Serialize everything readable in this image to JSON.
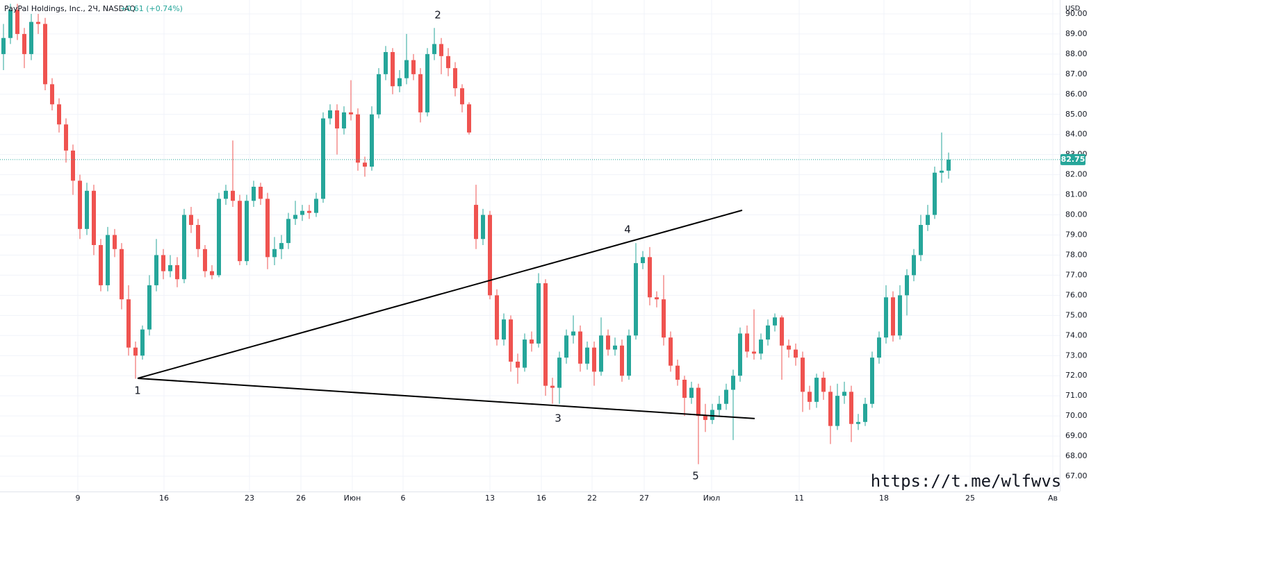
{
  "chart_data": {
    "type": "candlestick",
    "title": "PayPal Holdings, Inc., 2Ч, NASDAQ",
    "change": "+0.61 (+0.74%)",
    "currency": "USD",
    "watermark": "https://t.me/wlfwvs",
    "up_color": "#26a69a",
    "down_color": "#ef5350",
    "grid": true,
    "open": [
      88.0,
      88.8,
      90.2,
      89.0,
      88.0,
      89.6,
      89.5,
      86.5,
      85.5,
      84.5,
      83.2,
      81.7,
      79.3,
      81.2,
      78.5,
      76.5,
      79.0,
      78.3,
      75.8,
      73.4,
      73.0,
      74.3,
      76.5,
      78.0,
      77.2,
      77.5,
      76.8,
      80.0,
      79.5,
      78.3,
      77.2,
      77.0,
      80.8,
      81.2,
      80.7,
      77.7,
      80.7,
      81.4,
      80.8,
      77.9,
      78.3,
      78.6,
      79.8,
      80.0,
      80.2,
      80.1,
      80.8,
      84.8,
      85.2,
      84.3,
      85.1,
      85.0,
      82.6,
      82.4,
      85.0,
      87.0,
      88.1,
      86.4,
      86.8,
      87.7,
      87.0,
      85.1,
      88.0,
      88.5,
      87.9,
      87.3,
      86.3,
      85.5,
      80.5,
      78.8,
      80.0,
      76.0,
      73.8,
      74.8,
      72.7,
      72.4,
      73.8,
      73.6,
      76.6,
      71.5,
      71.4,
      72.9,
      74.0,
      74.2,
      72.6,
      73.4,
      72.2,
      74.0,
      73.3,
      73.5,
      72.0,
      74.0,
      77.6,
      77.9,
      75.9,
      75.8,
      73.9,
      72.5,
      71.8,
      70.9,
      71.4,
      70.0,
      69.8,
      70.3,
      70.6,
      71.3,
      72.0,
      74.1,
      73.2,
      73.1,
      73.8,
      74.5,
      74.9,
      73.5,
      73.3,
      72.9,
      71.2,
      70.7,
      71.9,
      71.2,
      69.5,
      71.0,
      71.2,
      69.6,
      69.7,
      70.6,
      72.9,
      73.9,
      75.9,
      74.0,
      76.0,
      77.0,
      78.0,
      79.5,
      80.0,
      82.1,
      82.2
    ],
    "high": [
      89.5,
      90.5,
      90.5,
      89.3,
      90.0,
      90.0,
      89.8,
      86.8,
      85.8,
      84.8,
      83.5,
      82.0,
      81.6,
      81.5,
      78.8,
      79.4,
      79.3,
      78.6,
      76.5,
      73.7,
      74.5,
      77.0,
      78.8,
      78.3,
      78.0,
      77.9,
      80.3,
      80.4,
      79.8,
      78.5,
      77.5,
      81.1,
      81.5,
      83.7,
      81.0,
      81.0,
      81.7,
      81.6,
      81.1,
      78.9,
      79.0,
      80.1,
      80.7,
      80.5,
      80.5,
      81.1,
      85.1,
      85.5,
      85.5,
      85.4,
      86.7,
      85.3,
      82.9,
      85.4,
      87.3,
      88.4,
      88.3,
      87.2,
      89.0,
      88.0,
      87.3,
      88.3,
      89.3,
      88.8,
      88.3,
      87.6,
      86.5,
      85.6,
      81.5,
      80.3,
      80.2,
      76.3,
      75.1,
      75.0,
      73.1,
      74.1,
      74.2,
      77.1,
      76.8,
      71.9,
      73.2,
      74.3,
      75.0,
      74.5,
      73.7,
      73.7,
      74.9,
      74.3,
      73.9,
      73.8,
      74.3,
      78.6,
      78.2,
      78.4,
      76.2,
      77.0,
      74.2,
      72.8,
      72.0,
      71.7,
      71.6,
      70.6,
      70.6,
      71.0,
      71.6,
      72.3,
      74.4,
      74.5,
      75.3,
      74.1,
      74.8,
      75.1,
      75.0,
      73.8,
      73.6,
      73.2,
      71.5,
      72.1,
      72.2,
      71.5,
      71.6,
      71.7,
      71.5,
      70.1,
      70.9,
      73.2,
      74.2,
      76.5,
      76.2,
      76.5,
      77.3,
      78.3,
      80.0,
      80.5,
      82.4,
      84.1,
      83.1
    ],
    "low": [
      87.2,
      88.5,
      88.7,
      87.3,
      87.7,
      89.0,
      86.2,
      85.2,
      84.1,
      82.6,
      81.0,
      78.8,
      79.0,
      78.0,
      76.2,
      76.2,
      77.9,
      75.3,
      73.0,
      71.85,
      72.8,
      74.0,
      76.2,
      76.8,
      76.9,
      76.4,
      76.6,
      79.1,
      77.9,
      76.9,
      76.8,
      76.9,
      80.5,
      80.4,
      77.5,
      77.5,
      80.4,
      80.5,
      77.3,
      77.5,
      77.8,
      78.3,
      79.5,
      79.7,
      79.8,
      79.9,
      80.6,
      84.5,
      83.0,
      84.0,
      84.7,
      82.2,
      81.9,
      82.2,
      84.8,
      86.7,
      86.0,
      86.1,
      86.5,
      86.7,
      84.6,
      84.9,
      87.7,
      87.0,
      86.9,
      85.9,
      85.1,
      84.0,
      78.3,
      78.5,
      75.8,
      73.5,
      73.5,
      72.2,
      71.6,
      72.2,
      73.2,
      73.4,
      71.0,
      70.6,
      70.6,
      72.6,
      73.6,
      72.2,
      72.3,
      71.5,
      72.0,
      73.0,
      73.0,
      71.7,
      71.8,
      73.8,
      77.3,
      75.5,
      75.4,
      73.5,
      72.2,
      71.5,
      70.0,
      70.6,
      67.6,
      69.2,
      69.6,
      70.0,
      70.3,
      68.8,
      71.7,
      72.9,
      72.8,
      72.8,
      73.5,
      74.2,
      71.8,
      72.9,
      72.5,
      70.2,
      70.3,
      70.4,
      70.8,
      68.6,
      69.3,
      70.6,
      68.7,
      69.3,
      69.5,
      70.4,
      72.6,
      73.6,
      73.7,
      73.8,
      75.0,
      76.7,
      77.7,
      79.2,
      79.8,
      81.6,
      81.8
    ],
    "close": [
      88.8,
      90.2,
      89.0,
      88.0,
      89.6,
      89.5,
      86.5,
      85.5,
      84.5,
      83.2,
      81.7,
      79.3,
      81.2,
      78.5,
      76.5,
      79.0,
      78.3,
      75.8,
      73.4,
      73.0,
      74.3,
      76.5,
      78.0,
      77.2,
      77.5,
      76.8,
      80.0,
      79.5,
      78.3,
      77.2,
      77.0,
      80.8,
      81.2,
      80.7,
      77.7,
      80.7,
      81.4,
      80.8,
      77.9,
      78.3,
      78.6,
      79.8,
      80.0,
      80.2,
      80.1,
      80.8,
      84.8,
      85.2,
      84.3,
      85.1,
      85.0,
      82.6,
      82.4,
      85.0,
      87.0,
      88.1,
      86.4,
      86.8,
      87.7,
      87.0,
      85.1,
      88.0,
      88.5,
      87.9,
      87.3,
      86.3,
      85.5,
      84.1,
      78.8,
      80.0,
      76.0,
      73.8,
      74.8,
      72.7,
      72.4,
      73.8,
      73.6,
      76.6,
      71.5,
      71.4,
      72.9,
      74.0,
      74.2,
      72.6,
      73.4,
      72.2,
      74.0,
      73.3,
      73.5,
      72.0,
      74.0,
      77.6,
      77.9,
      75.9,
      75.8,
      73.9,
      72.5,
      71.8,
      70.9,
      71.4,
      70.0,
      69.8,
      70.3,
      70.6,
      71.3,
      72.0,
      74.1,
      73.2,
      73.1,
      73.8,
      74.5,
      74.9,
      73.5,
      73.3,
      72.9,
      71.2,
      70.7,
      71.9,
      71.2,
      69.5,
      71.0,
      71.2,
      69.6,
      69.7,
      70.6,
      72.9,
      73.9,
      75.9,
      74.0,
      76.0,
      77.0,
      78.0,
      79.5,
      80.0,
      82.1,
      82.2,
      82.75
    ],
    "last_price": 82.75,
    "xlim": [
      -0.5,
      152
    ],
    "xticks": [
      {
        "value": 10.7,
        "label": "9"
      },
      {
        "value": 23.1,
        "label": "16"
      },
      {
        "value": 35.4,
        "label": "23"
      },
      {
        "value": 42.8,
        "label": "26"
      },
      {
        "value": 50.2,
        "label": "Июн"
      },
      {
        "value": 57.5,
        "label": "6"
      },
      {
        "value": 70,
        "label": "13"
      },
      {
        "value": 77.4,
        "label": "16"
      },
      {
        "value": 84.7,
        "label": "22"
      },
      {
        "value": 92.2,
        "label": "27"
      },
      {
        "value": 101.9,
        "label": "Июл"
      },
      {
        "value": 114.5,
        "label": "11"
      },
      {
        "value": 126.7,
        "label": "18"
      },
      {
        "value": 139.1,
        "label": "25"
      },
      {
        "value": 151,
        "label": "Ав"
      }
    ],
    "ylim": [
      66.24,
      90.69
    ],
    "yticks": [
      {
        "value": 67,
        "label": "67.00"
      },
      {
        "value": 68,
        "label": "68.00"
      },
      {
        "value": 69,
        "label": "69.00"
      },
      {
        "value": 70,
        "label": "70.00"
      },
      {
        "value": 71,
        "label": "71.00"
      },
      {
        "value": 72,
        "label": "72.00"
      },
      {
        "value": 73,
        "label": "73.00"
      },
      {
        "value": 74,
        "label": "74.00"
      },
      {
        "value": 75,
        "label": "75.00"
      },
      {
        "value": 76,
        "label": "76.00"
      },
      {
        "value": 77,
        "label": "77.00"
      },
      {
        "value": 78,
        "label": "78.00"
      },
      {
        "value": 79,
        "label": "79.00"
      },
      {
        "value": 80,
        "label": "80.00"
      },
      {
        "value": 81,
        "label": "81.00"
      },
      {
        "value": 82,
        "label": "82.00"
      },
      {
        "value": 83,
        "label": "83.00"
      },
      {
        "value": 84,
        "label": "84.00"
      },
      {
        "value": 85,
        "label": "85.00"
      },
      {
        "value": 86,
        "label": "86.00"
      },
      {
        "value": 87,
        "label": "87.00"
      },
      {
        "value": 88,
        "label": "88.00"
      },
      {
        "value": 89,
        "label": "89.00"
      },
      {
        "value": 90,
        "label": "90.00"
      }
    ],
    "trend_lines": [
      {
        "x": [
          19.3,
          106.3
        ],
        "y": [
          71.87,
          80.23
        ]
      },
      {
        "x": [
          19.3,
          108.1
        ],
        "y": [
          71.87,
          69.87
        ]
      }
    ],
    "wave_labels": [
      "1",
      "2",
      "3",
      "4",
      "5"
    ]
  }
}
